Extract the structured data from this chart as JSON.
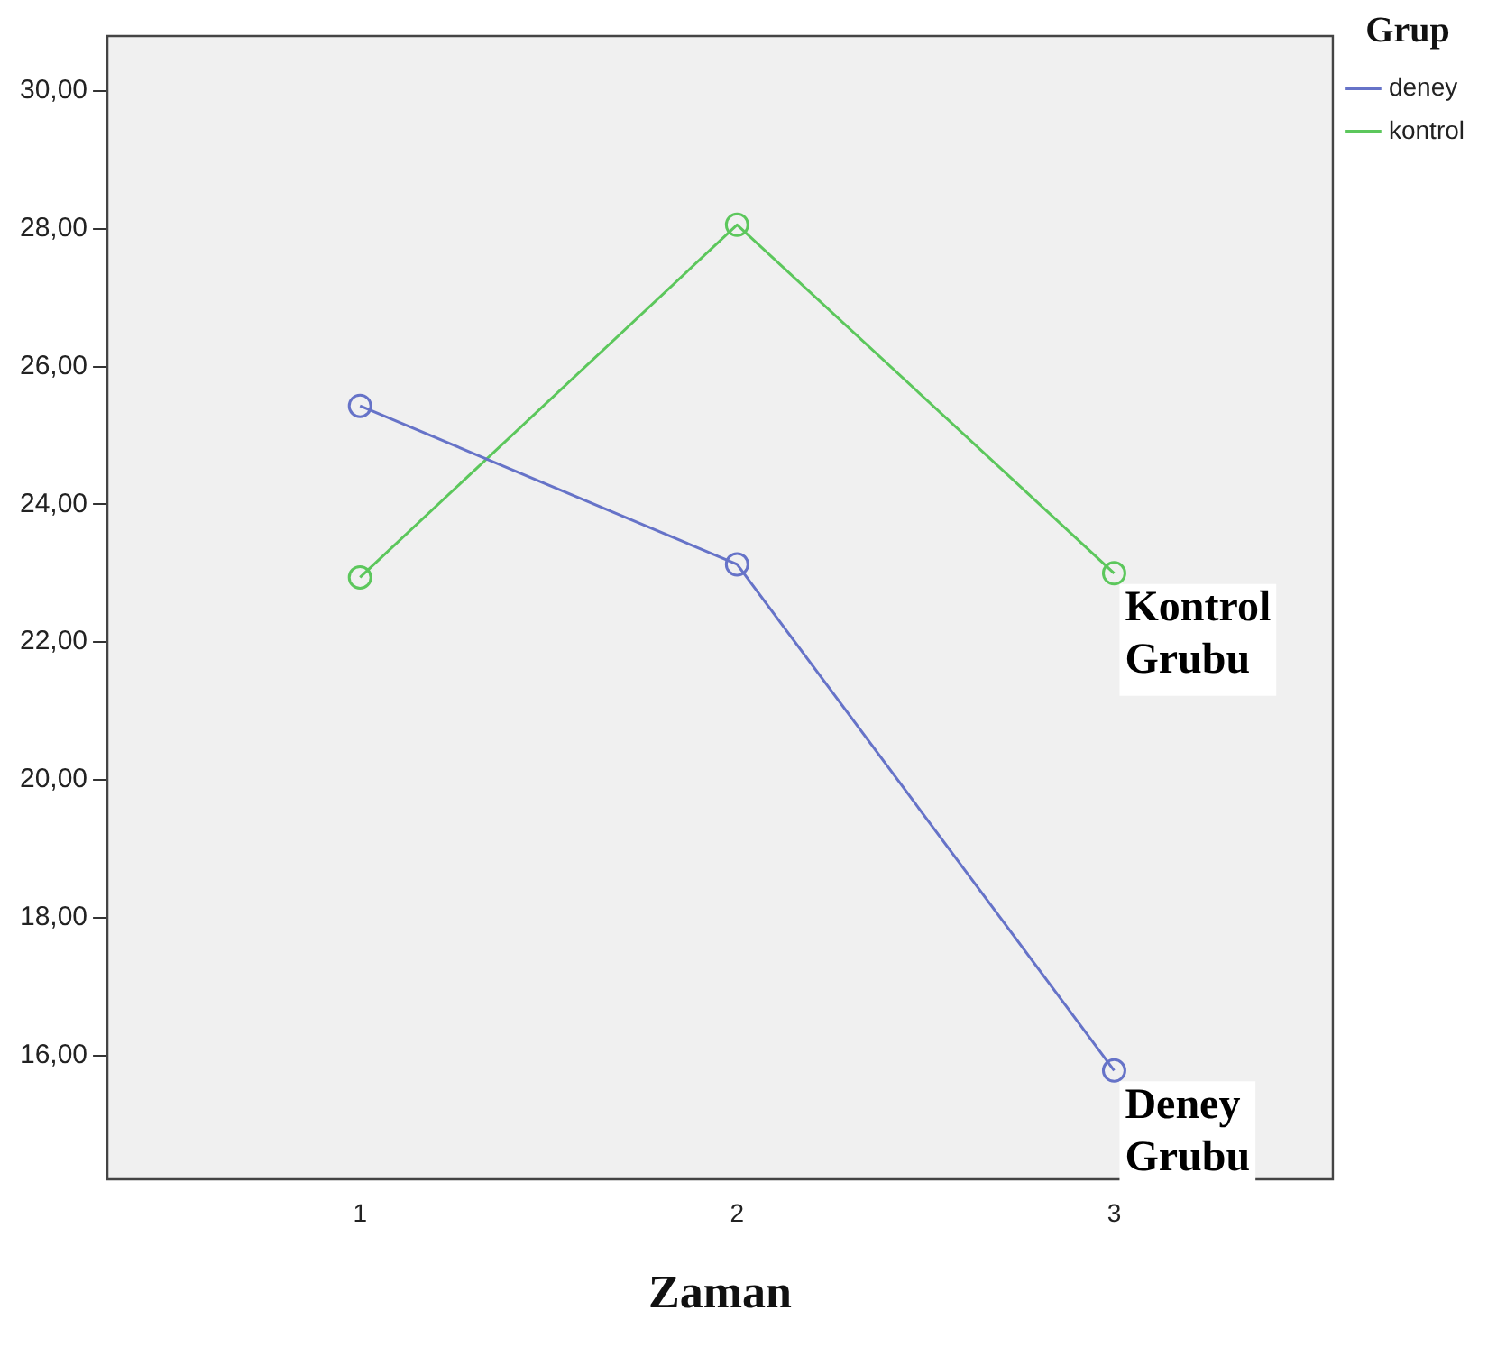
{
  "chart_data": {
    "type": "line",
    "xlabel": "Zaman",
    "legend_title": "Grup",
    "x": [
      1,
      2,
      3
    ],
    "xlim": [
      0.33,
      3.58
    ],
    "xticks": [
      1,
      2,
      3
    ],
    "ylim": [
      14.2,
      30.8
    ],
    "yticks": [
      {
        "value": 16,
        "label": "16,00"
      },
      {
        "value": 18,
        "label": "18,00"
      },
      {
        "value": 20,
        "label": "20,00"
      },
      {
        "value": 22,
        "label": "22,00"
      },
      {
        "value": 24,
        "label": "24,00"
      },
      {
        "value": 26,
        "label": "26,00"
      },
      {
        "value": 28,
        "label": "28,00"
      },
      {
        "value": 30,
        "label": "30,00"
      }
    ],
    "series": [
      {
        "name": "deney",
        "color": "#6673c8",
        "values": [
          25.43,
          23.13,
          15.78
        ]
      },
      {
        "name": "kontrol",
        "color": "#5cc75c",
        "values": [
          22.94,
          28.06,
          23.0
        ]
      }
    ],
    "annotations": [
      {
        "text": "Kontrol Grubu",
        "x": 3,
        "y": 23.0
      },
      {
        "text": "Deney Grubu",
        "x": 3,
        "y": 15.78
      }
    ],
    "marker": "circle",
    "line_style": "solid",
    "grid": false,
    "legend": "top right"
  }
}
